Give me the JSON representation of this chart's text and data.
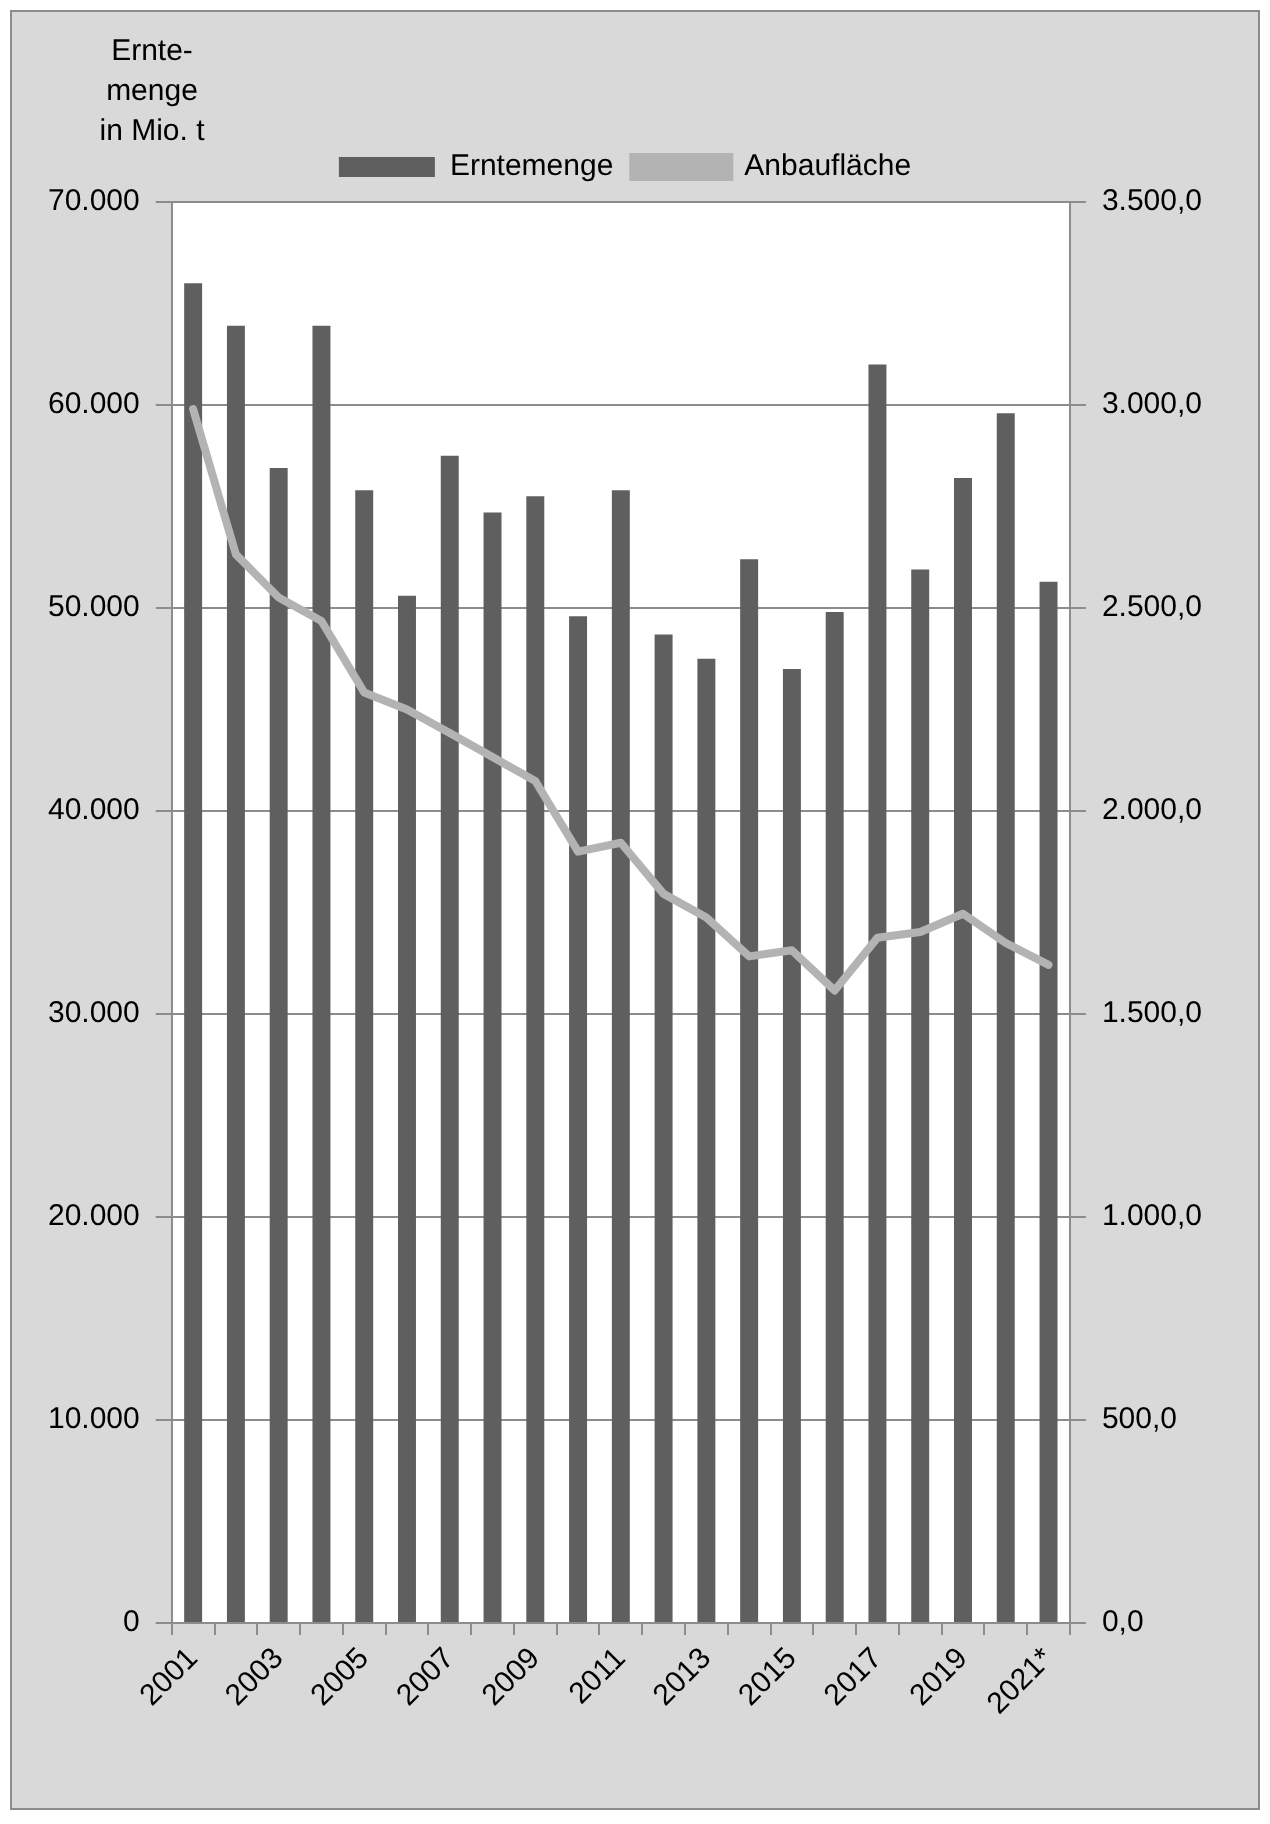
{
  "chart_data": {
    "type": "bar",
    "ylabel": "Ernte-\nmenge\nin Mio. t",
    "categories": [
      "2001",
      null,
      "2003",
      null,
      "2005",
      null,
      "2007",
      null,
      "2009",
      null,
      "2011",
      null,
      "2013",
      null,
      "2015",
      null,
      "2017",
      null,
      "2019",
      null,
      "2021*"
    ],
    "series": [
      {
        "name": "Erntemenge",
        "color": "#5f5f5f",
        "values": [
          66000,
          63900,
          56900,
          63900,
          55800,
          50600,
          57500,
          54700,
          55500,
          49600,
          55800,
          48700,
          47500,
          52400,
          47000,
          49800,
          62000,
          51900,
          56400,
          59600,
          51300
        ]
      },
      {
        "name": "Anbaufläche",
        "type": "line",
        "axis": "y2",
        "color": "#b3b3b3",
        "values": [
          2990,
          2632,
          2526,
          2468,
          2292,
          2250,
          2192,
          2133,
          2074,
          1900,
          1922,
          1796,
          1738,
          1642,
          1657,
          1558,
          1688,
          1702,
          1747,
          1675,
          1621
        ]
      }
    ],
    "ylim": [
      0,
      70000
    ],
    "yticks": [
      {
        "value": 0,
        "label": "0"
      },
      {
        "value": 10000,
        "label": "10.000"
      },
      {
        "value": 20000,
        "label": "20.000"
      },
      {
        "value": 30000,
        "label": "30.000"
      },
      {
        "value": 40000,
        "label": "40.000"
      },
      {
        "value": 50000,
        "label": "50.000"
      },
      {
        "value": 60000,
        "label": "60.000"
      },
      {
        "value": 70000,
        "label": "70.000"
      }
    ],
    "y2lim": [
      0,
      3500
    ],
    "y2ticks": [
      {
        "value": 0,
        "label": "0,0"
      },
      {
        "value": 500,
        "label": "500,0"
      },
      {
        "value": 1000,
        "label": "1.000,0"
      },
      {
        "value": 1500,
        "label": "1.500,0"
      },
      {
        "value": 2000,
        "label": "2.000,0"
      },
      {
        "value": 2500,
        "label": "2.500,0"
      },
      {
        "value": 3000,
        "label": "3.000,0"
      },
      {
        "value": 3500,
        "label": "3.500,0"
      }
    ],
    "grid": "y",
    "legend": "top"
  }
}
